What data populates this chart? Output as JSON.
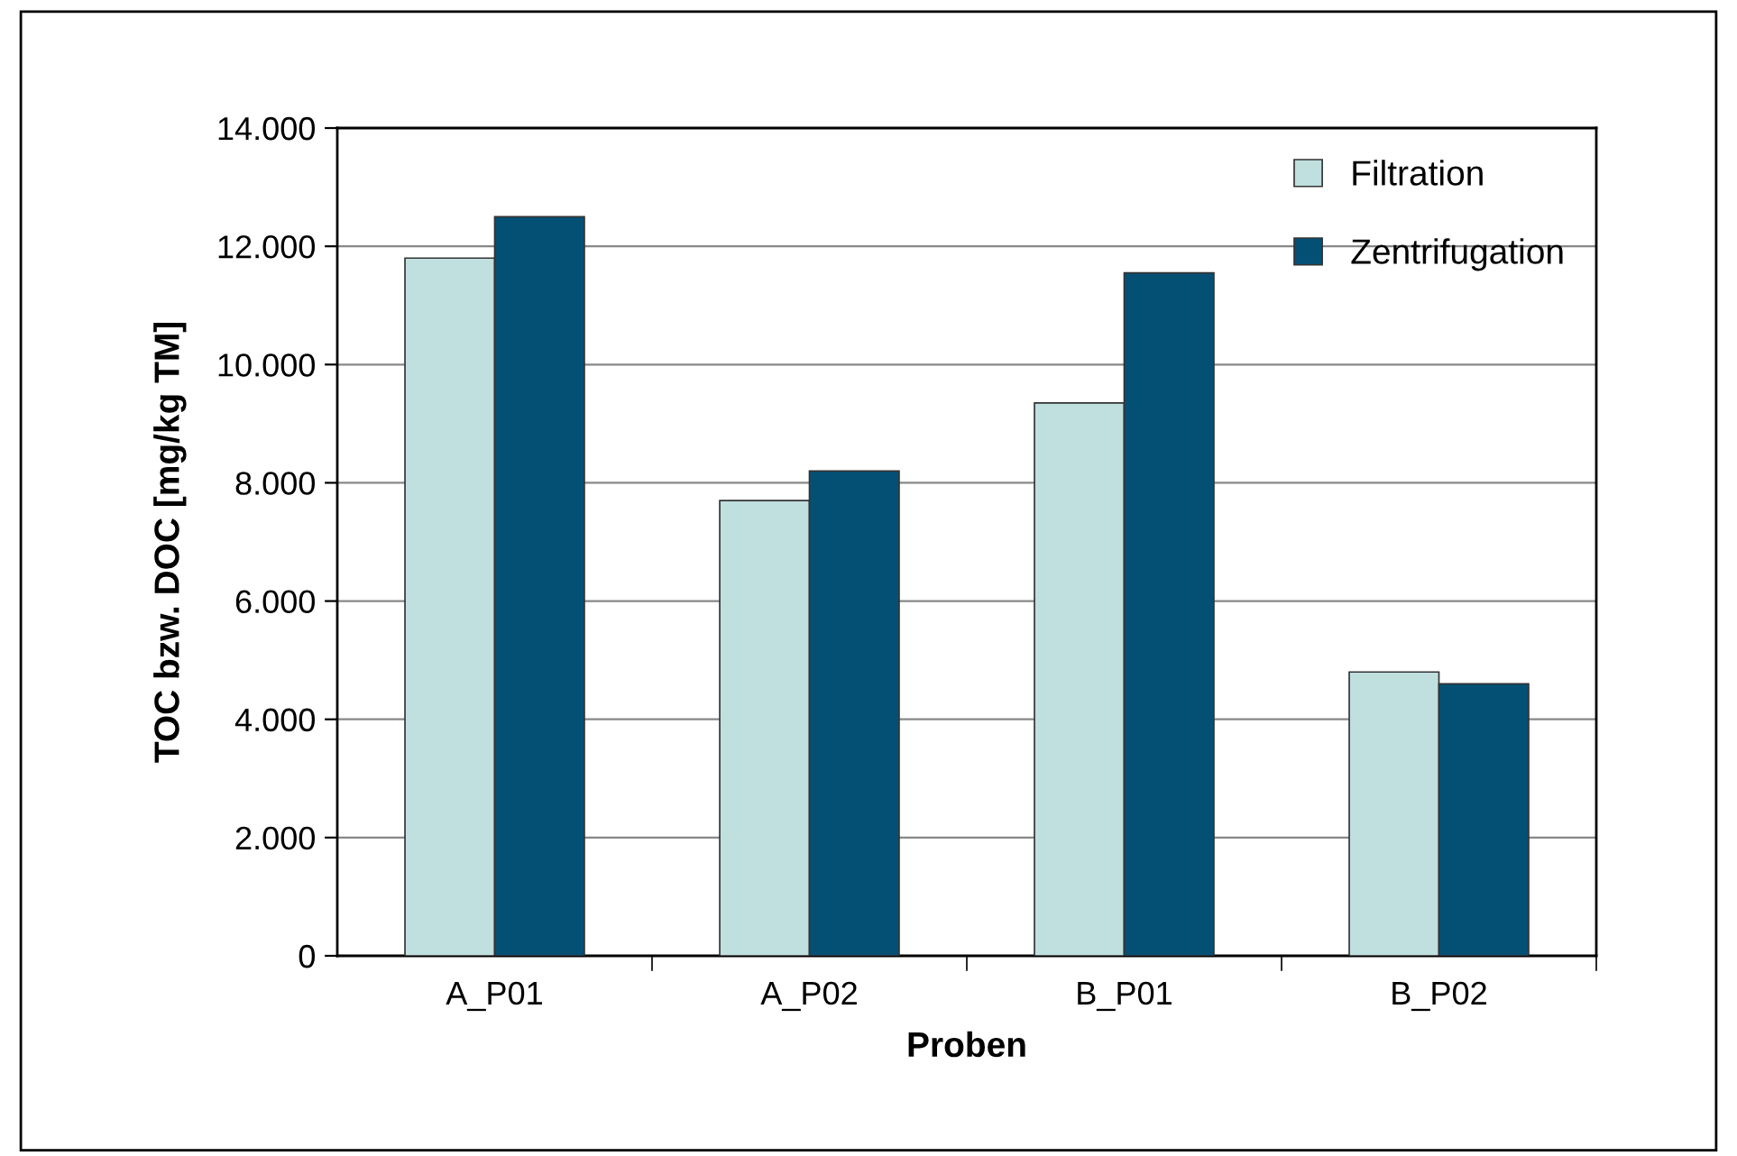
{
  "chart_data": {
    "type": "bar",
    "xlabel": "Proben",
    "ylabel": "TOC bzw. DOC [mg/kg TM]",
    "categories": [
      "A_P01",
      "A_P02",
      "B_P01",
      "B_P02"
    ],
    "series": [
      {
        "name": "Filtration",
        "color": "#c0dfdf",
        "values": [
          11800,
          7700,
          9350,
          4800
        ]
      },
      {
        "name": "Zentrifugation",
        "color": "#045075",
        "values": [
          12500,
          8200,
          11550,
          4600
        ]
      }
    ],
    "ylim": [
      0,
      14000
    ],
    "yticks": [
      {
        "value": 0,
        "label": "0"
      },
      {
        "value": 2000,
        "label": "2.000"
      },
      {
        "value": 4000,
        "label": "4.000"
      },
      {
        "value": 6000,
        "label": "6.000"
      },
      {
        "value": 8000,
        "label": "8.000"
      },
      {
        "value": 10000,
        "label": "10.000"
      },
      {
        "value": 12000,
        "label": "12.000"
      },
      {
        "value": 14000,
        "label": "14.000"
      }
    ],
    "grid": "y",
    "legend": "top right"
  }
}
